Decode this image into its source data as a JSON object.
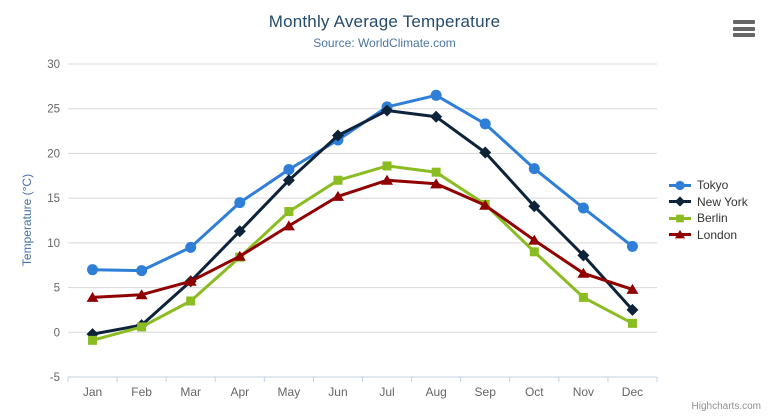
{
  "header": {
    "title": "Monthly Average Temperature",
    "subtitle": "Source: WorldClimate.com"
  },
  "toolbar": {
    "export_menu_icon": "hamburger-icon"
  },
  "credits": {
    "label": "Highcharts.com"
  },
  "colors": {
    "title": "#274b6d",
    "subtitle": "#4d759e",
    "axis_labels": "#666666",
    "yaxis_title": "#4572a7",
    "gridline": "#d8d8d8",
    "axis_line": "#c0d0e0",
    "legend_text": "#333333",
    "credits_text": "#909090"
  },
  "chart_data": {
    "type": "line",
    "title": "Monthly Average Temperature",
    "subtitle": "Source: WorldClimate.com",
    "xlabel": "",
    "ylabel": "Temperature (°C)",
    "categories": [
      "Jan",
      "Feb",
      "Mar",
      "Apr",
      "May",
      "Jun",
      "Jul",
      "Aug",
      "Sep",
      "Oct",
      "Nov",
      "Dec"
    ],
    "ylim": [
      -5,
      30
    ],
    "yticks": [
      30,
      25,
      20,
      15,
      10,
      5,
      0,
      -5
    ],
    "grid": true,
    "legend_position": "right",
    "series": [
      {
        "name": "Tokyo",
        "color": "#2f7ed8",
        "marker": "circle",
        "values": [
          7.0,
          6.9,
          9.5,
          14.5,
          18.2,
          21.5,
          25.2,
          26.5,
          23.3,
          18.3,
          13.9,
          9.6
        ]
      },
      {
        "name": "New York",
        "color": "#0d233a",
        "marker": "diamond",
        "values": [
          -0.2,
          0.8,
          5.7,
          11.3,
          17.0,
          22.0,
          24.8,
          24.1,
          20.1,
          14.1,
          8.6,
          2.5
        ]
      },
      {
        "name": "Berlin",
        "color": "#8bbc21",
        "marker": "square",
        "values": [
          -0.9,
          0.6,
          3.5,
          8.4,
          13.5,
          17.0,
          18.6,
          17.9,
          14.3,
          9.0,
          3.9,
          1.0
        ]
      },
      {
        "name": "London",
        "color": "#910000",
        "marker": "triangle",
        "values": [
          3.9,
          4.2,
          5.7,
          8.5,
          11.9,
          15.2,
          17.0,
          16.6,
          14.2,
          10.3,
          6.6,
          4.8
        ]
      }
    ]
  }
}
